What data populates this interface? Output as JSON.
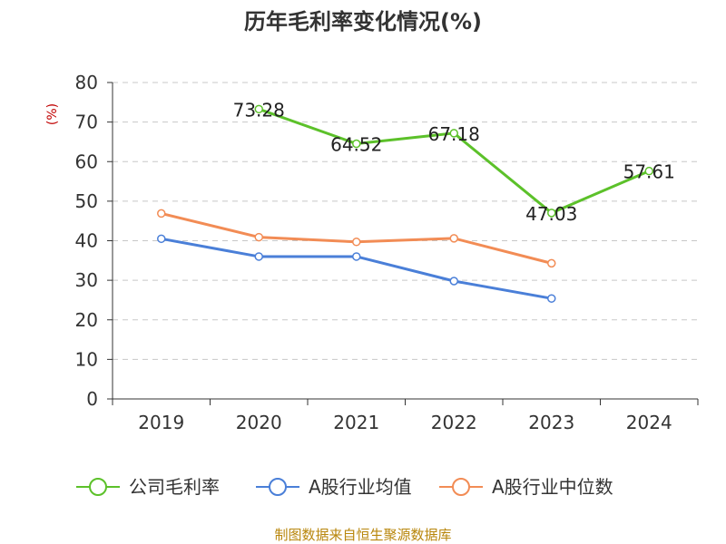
{
  "chart_data": {
    "type": "line",
    "title": "历年毛利率变化情况(%)",
    "ylabel": "(%)",
    "xlabel": "",
    "categories": [
      "2019",
      "2020",
      "2021",
      "2022",
      "2023",
      "2024"
    ],
    "ylim": [
      0,
      80
    ],
    "yticks": [
      0,
      10,
      20,
      30,
      40,
      50,
      60,
      70,
      80
    ],
    "grid": true,
    "legend_position": "bottom",
    "series": [
      {
        "name": "公司毛利率",
        "color": "#5cc12a",
        "values": [
          null,
          73.28,
          64.52,
          67.18,
          47.03,
          57.61
        ],
        "labels": [
          null,
          "73.28",
          "64.52",
          "67.18",
          "47.03",
          "57.61"
        ]
      },
      {
        "name": "A股行业均值",
        "color": "#4a7fd8",
        "values": [
          40.5,
          36.0,
          36.0,
          29.8,
          25.4,
          null
        ]
      },
      {
        "name": "A股行业中位数",
        "color": "#f28c55",
        "values": [
          46.9,
          40.9,
          39.7,
          40.6,
          34.3,
          null
        ]
      }
    ]
  },
  "source": "制图数据来自恒生聚源数据库"
}
